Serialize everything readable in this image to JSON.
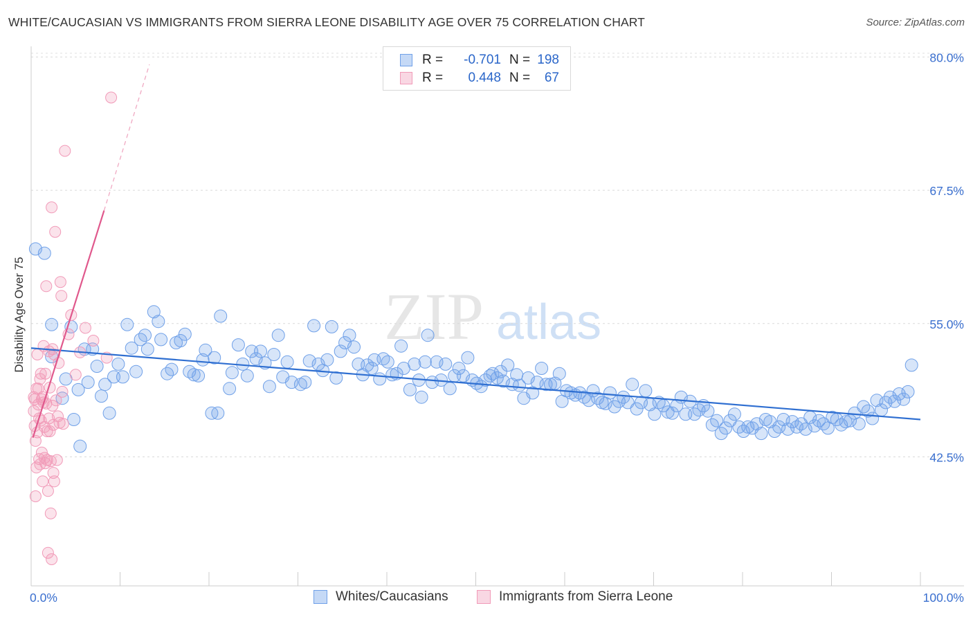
{
  "header": {
    "title": "WHITE/CAUCASIAN VS IMMIGRANTS FROM SIERRA LEONE DISABILITY AGE OVER 75 CORRELATION CHART",
    "source": "Source: ZipAtlas.com"
  },
  "watermark": {
    "zip": "ZIP",
    "atlas": "atlas"
  },
  "legend": {
    "rows": [
      {
        "r_label": "R =",
        "r_value": "-0.701",
        "n_label": "N =",
        "n_value": "198",
        "color": "#6fa0e8"
      },
      {
        "r_label": "R =",
        "r_value": "0.448",
        "n_label": "N =",
        "n_value": "67",
        "color": "#f19ab8"
      }
    ]
  },
  "bottom_legend": {
    "items": [
      {
        "label": "Whites/Caucasians",
        "color": "#6fa0e8"
      },
      {
        "label": "Immigrants from Sierra Leone",
        "color": "#f19ab8"
      }
    ]
  },
  "chart_data": {
    "type": "scatter",
    "title": "WHITE/CAUCASIAN VS IMMIGRANTS FROM SIERRA LEONE DISABILITY AGE OVER 75 CORRELATION CHART",
    "xlabel": "",
    "ylabel": "Disability Age Over 75",
    "xlim": [
      0,
      100
    ],
    "ylim": [
      30.4,
      81.0
    ],
    "x_tick_labels": [
      "0.0%",
      "100.0%"
    ],
    "y_ticks": [
      42.5,
      55.0,
      67.5,
      80.0
    ],
    "y_tick_labels": [
      "42.5%",
      "55.0%",
      "67.5%",
      "80.0%"
    ],
    "grid": "horizontal dashed",
    "legend_position": "top-center",
    "series": [
      {
        "name": "Whites/Caucasians",
        "color": "#6fa0e8",
        "trend": {
          "x": [
            0,
            100
          ],
          "y": [
            52.7,
            46.0
          ]
        },
        "points": [
          [
            0.5,
            62.0
          ],
          [
            1.5,
            61.6
          ],
          [
            2.3,
            51.9
          ],
          [
            2.3,
            54.9
          ],
          [
            3.5,
            48.0
          ],
          [
            3.9,
            49.8
          ],
          [
            4.5,
            54.7
          ],
          [
            4.8,
            46.0
          ],
          [
            5.3,
            48.8
          ],
          [
            5.5,
            43.5
          ],
          [
            6.0,
            52.6
          ],
          [
            6.4,
            49.5
          ],
          [
            6.9,
            52.6
          ],
          [
            7.4,
            51.0
          ],
          [
            7.9,
            48.2
          ],
          [
            8.3,
            49.3
          ],
          [
            8.8,
            46.6
          ],
          [
            9.3,
            50.0
          ],
          [
            9.8,
            51.2
          ],
          [
            10.3,
            50.0
          ],
          [
            10.8,
            54.9
          ],
          [
            11.3,
            52.7
          ],
          [
            11.8,
            50.5
          ],
          [
            12.3,
            53.5
          ],
          [
            12.8,
            53.9
          ],
          [
            13.1,
            52.6
          ],
          [
            13.8,
            56.1
          ],
          [
            14.3,
            55.2
          ],
          [
            14.6,
            53.5
          ],
          [
            15.3,
            50.3
          ],
          [
            15.8,
            50.7
          ],
          [
            16.3,
            53.2
          ],
          [
            16.8,
            53.4
          ],
          [
            17.3,
            54.0
          ],
          [
            17.8,
            50.5
          ],
          [
            18.3,
            50.2
          ],
          [
            18.8,
            50.1
          ],
          [
            19.3,
            51.6
          ],
          [
            19.6,
            52.5
          ],
          [
            20.3,
            46.6
          ],
          [
            20.6,
            51.8
          ],
          [
            21.0,
            46.6
          ],
          [
            21.3,
            55.7
          ],
          [
            22.3,
            48.9
          ],
          [
            22.6,
            50.4
          ],
          [
            23.3,
            53.0
          ],
          [
            23.8,
            51.2
          ],
          [
            24.3,
            50.1
          ],
          [
            24.8,
            52.4
          ],
          [
            25.3,
            51.7
          ],
          [
            25.8,
            52.4
          ],
          [
            26.3,
            51.3
          ],
          [
            26.8,
            49.1
          ],
          [
            27.3,
            52.1
          ],
          [
            27.8,
            53.9
          ],
          [
            28.3,
            50.0
          ],
          [
            28.8,
            51.4
          ],
          [
            29.3,
            49.5
          ],
          [
            30.3,
            49.3
          ],
          [
            30.8,
            49.5
          ],
          [
            31.3,
            51.5
          ],
          [
            31.8,
            54.8
          ],
          [
            32.3,
            51.2
          ],
          [
            32.8,
            50.6
          ],
          [
            33.3,
            51.6
          ],
          [
            33.8,
            54.7
          ],
          [
            34.3,
            49.9
          ],
          [
            34.8,
            52.4
          ],
          [
            35.3,
            53.2
          ],
          [
            35.8,
            53.9
          ],
          [
            36.3,
            52.8
          ],
          [
            36.8,
            51.2
          ],
          [
            37.3,
            50.2
          ],
          [
            37.8,
            51.1
          ],
          [
            38.3,
            50.8
          ],
          [
            38.6,
            51.6
          ],
          [
            39.2,
            49.8
          ],
          [
            39.6,
            51.7
          ],
          [
            40.1,
            51.4
          ],
          [
            40.6,
            50.2
          ],
          [
            41.1,
            50.3
          ],
          [
            41.6,
            52.9
          ],
          [
            41.9,
            50.8
          ],
          [
            42.6,
            48.8
          ],
          [
            43.1,
            51.2
          ],
          [
            43.6,
            49.7
          ],
          [
            43.9,
            48.1
          ],
          [
            44.3,
            51.4
          ],
          [
            44.6,
            53.9
          ],
          [
            45.1,
            49.5
          ],
          [
            45.6,
            51.4
          ],
          [
            46.1,
            49.7
          ],
          [
            46.6,
            51.2
          ],
          [
            47.1,
            48.9
          ],
          [
            47.6,
            50.1
          ],
          [
            48.1,
            50.8
          ],
          [
            48.6,
            50.1
          ],
          [
            49.1,
            51.8
          ],
          [
            49.6,
            49.7
          ],
          [
            50.1,
            49.4
          ],
          [
            50.6,
            49.1
          ],
          [
            51.1,
            49.7
          ],
          [
            51.6,
            50.1
          ],
          [
            51.9,
            50.3
          ],
          [
            52.4,
            49.9
          ],
          [
            52.8,
            50.5
          ],
          [
            53.1,
            49.6
          ],
          [
            53.6,
            51.1
          ],
          [
            54.1,
            49.3
          ],
          [
            54.6,
            50.2
          ],
          [
            54.9,
            49.2
          ],
          [
            55.4,
            48.0
          ],
          [
            55.9,
            49.9
          ],
          [
            56.4,
            48.5
          ],
          [
            56.9,
            49.5
          ],
          [
            57.4,
            50.8
          ],
          [
            57.9,
            49.3
          ],
          [
            58.4,
            49.3
          ],
          [
            58.9,
            49.4
          ],
          [
            59.4,
            50.3
          ],
          [
            59.7,
            47.7
          ],
          [
            60.2,
            48.7
          ],
          [
            60.7,
            48.5
          ],
          [
            61.2,
            48.3
          ],
          [
            61.7,
            48.5
          ],
          [
            62.2,
            48.1
          ],
          [
            62.7,
            47.8
          ],
          [
            63.2,
            48.7
          ],
          [
            63.7,
            48.0
          ],
          [
            64.2,
            47.6
          ],
          [
            64.6,
            47.5
          ],
          [
            65.1,
            48.5
          ],
          [
            65.6,
            47.2
          ],
          [
            66.1,
            47.7
          ],
          [
            66.6,
            48.1
          ],
          [
            67.1,
            47.6
          ],
          [
            67.6,
            49.3
          ],
          [
            68.1,
            47.0
          ],
          [
            68.6,
            47.6
          ],
          [
            69.1,
            48.7
          ],
          [
            69.6,
            47.4
          ],
          [
            70.1,
            46.5
          ],
          [
            70.6,
            47.6
          ],
          [
            71.1,
            47.3
          ],
          [
            71.6,
            46.7
          ],
          [
            72.1,
            46.6
          ],
          [
            72.6,
            47.3
          ],
          [
            73.1,
            48.1
          ],
          [
            73.6,
            46.5
          ],
          [
            74.1,
            47.7
          ],
          [
            74.6,
            46.5
          ],
          [
            75.1,
            46.9
          ],
          [
            75.6,
            47.3
          ],
          [
            76.1,
            46.8
          ],
          [
            76.6,
            45.5
          ],
          [
            77.1,
            45.9
          ],
          [
            77.6,
            44.7
          ],
          [
            78.1,
            45.2
          ],
          [
            78.6,
            45.9
          ],
          [
            79.1,
            46.5
          ],
          [
            79.6,
            45.3
          ],
          [
            80.1,
            44.9
          ],
          [
            80.6,
            45.3
          ],
          [
            81.1,
            45.2
          ],
          [
            81.6,
            45.6
          ],
          [
            82.1,
            44.7
          ],
          [
            82.6,
            46.0
          ],
          [
            83.1,
            45.8
          ],
          [
            83.6,
            44.9
          ],
          [
            84.1,
            45.3
          ],
          [
            84.6,
            46.0
          ],
          [
            85.1,
            45.1
          ],
          [
            85.6,
            45.8
          ],
          [
            86.1,
            45.3
          ],
          [
            86.6,
            45.6
          ],
          [
            87.1,
            45.1
          ],
          [
            87.6,
            46.2
          ],
          [
            88.1,
            45.4
          ],
          [
            88.6,
            45.9
          ],
          [
            89.1,
            45.6
          ],
          [
            89.6,
            45.2
          ],
          [
            90.1,
            46.2
          ],
          [
            90.6,
            46.0
          ],
          [
            91.1,
            45.5
          ],
          [
            91.6,
            45.8
          ],
          [
            92.1,
            45.9
          ],
          [
            92.6,
            46.6
          ],
          [
            93.1,
            45.6
          ],
          [
            93.6,
            47.2
          ],
          [
            94.1,
            46.8
          ],
          [
            94.6,
            46.1
          ],
          [
            95.1,
            47.8
          ],
          [
            95.6,
            46.9
          ],
          [
            96.1,
            47.6
          ],
          [
            96.6,
            48.1
          ],
          [
            97.1,
            47.7
          ],
          [
            97.6,
            48.4
          ],
          [
            98.1,
            47.9
          ],
          [
            98.6,
            48.6
          ],
          [
            99.0,
            51.1
          ]
        ]
      },
      {
        "name": "Immigrants from Sierra Leone",
        "color": "#f19ab8",
        "trend": {
          "x": [
            0.2,
            8.2
          ],
          "y": [
            44.3,
            65.6
          ],
          "extended": {
            "x": [
              8.2,
              13.3
            ],
            "y": [
              65.6,
              79.3
            ]
          }
        },
        "points": [
          [
            0.3,
            48.1
          ],
          [
            0.3,
            46.8
          ],
          [
            0.4,
            47.9
          ],
          [
            0.4,
            45.4
          ],
          [
            0.5,
            44.0
          ],
          [
            0.5,
            38.8
          ],
          [
            0.6,
            48.9
          ],
          [
            0.6,
            41.5
          ],
          [
            0.7,
            52.1
          ],
          [
            0.7,
            44.8
          ],
          [
            0.8,
            48.9
          ],
          [
            0.8,
            47.4
          ],
          [
            0.9,
            42.3
          ],
          [
            0.9,
            46.1
          ],
          [
            1.0,
            49.8
          ],
          [
            1.0,
            41.8
          ],
          [
            1.1,
            50.3
          ],
          [
            1.1,
            45.9
          ],
          [
            1.2,
            47.9
          ],
          [
            1.2,
            42.9
          ],
          [
            1.3,
            48.1
          ],
          [
            1.3,
            40.2
          ],
          [
            1.4,
            52.9
          ],
          [
            1.4,
            47.6
          ],
          [
            1.5,
            45.3
          ],
          [
            1.5,
            42.4
          ],
          [
            1.6,
            50.3
          ],
          [
            1.6,
            41.9
          ],
          [
            1.7,
            58.5
          ],
          [
            1.7,
            47.5
          ],
          [
            1.8,
            44.9
          ],
          [
            1.8,
            42.2
          ],
          [
            1.9,
            39.3
          ],
          [
            1.9,
            33.5
          ],
          [
            2.0,
            52.4
          ],
          [
            2.0,
            46.1
          ],
          [
            2.1,
            49.0
          ],
          [
            2.1,
            44.9
          ],
          [
            2.2,
            42.1
          ],
          [
            2.2,
            37.2
          ],
          [
            2.3,
            65.9
          ],
          [
            2.3,
            32.9
          ],
          [
            2.4,
            52.6
          ],
          [
            2.4,
            47.3
          ],
          [
            2.5,
            45.5
          ],
          [
            2.5,
            41.0
          ],
          [
            2.6,
            52.1
          ],
          [
            2.6,
            40.2
          ],
          [
            2.7,
            63.6
          ],
          [
            2.8,
            47.8
          ],
          [
            2.9,
            42.2
          ],
          [
            3.0,
            46.3
          ],
          [
            3.1,
            51.3
          ],
          [
            3.2,
            45.7
          ],
          [
            3.3,
            58.9
          ],
          [
            3.4,
            57.6
          ],
          [
            3.5,
            48.6
          ],
          [
            3.6,
            45.6
          ],
          [
            3.8,
            71.2
          ],
          [
            4.2,
            54.0
          ],
          [
            4.5,
            55.8
          ],
          [
            5.0,
            50.2
          ],
          [
            5.5,
            52.3
          ],
          [
            6.1,
            54.6
          ],
          [
            7.0,
            53.4
          ],
          [
            8.5,
            51.8
          ],
          [
            9.0,
            76.2
          ]
        ]
      }
    ]
  }
}
